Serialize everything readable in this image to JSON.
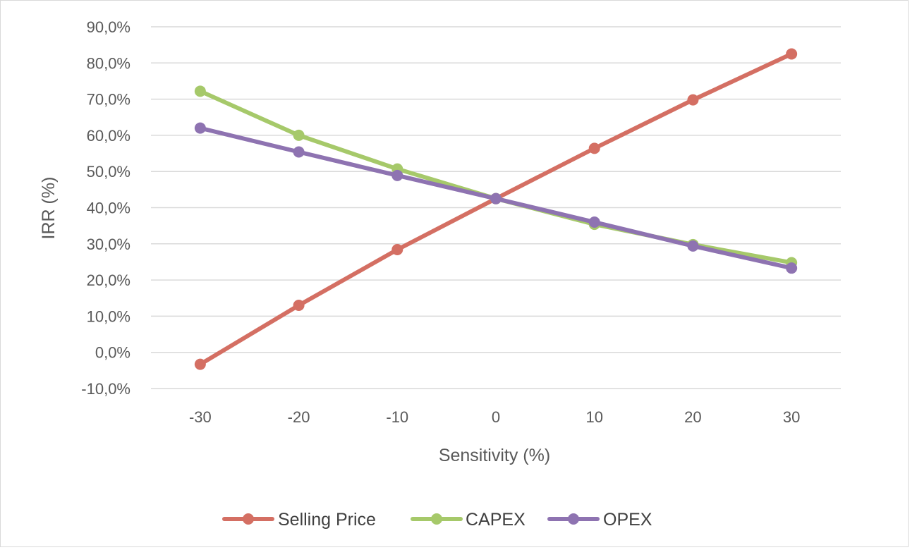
{
  "chart_data": {
    "type": "line",
    "title": "",
    "xlabel": "Sensitivity (%)",
    "ylabel": "IRR (%)",
    "x": [
      -30,
      -20,
      -10,
      0,
      10,
      20,
      30
    ],
    "x_tick_labels": [
      "-30",
      "-20",
      "-10",
      "0",
      "10",
      "20",
      "30"
    ],
    "ylim": [
      -10,
      90
    ],
    "y_ticks": [
      -10,
      0,
      10,
      20,
      30,
      40,
      50,
      60,
      70,
      80,
      90
    ],
    "y_tick_labels": [
      "-10,0%",
      "0,0%",
      "10,0%",
      "20,0%",
      "30,0%",
      "40,0%",
      "50,0%",
      "60,0%",
      "70,0%",
      "80,0%",
      "90,0%"
    ],
    "grid": "horizontal",
    "legend_position": "bottom",
    "series": [
      {
        "name": "Selling Price",
        "color": "#d46f63",
        "values": [
          -3.3,
          13.0,
          28.4,
          42.5,
          56.4,
          69.8,
          82.5
        ]
      },
      {
        "name": "CAPEX",
        "color": "#a6c96a",
        "values": [
          72.2,
          60.0,
          50.7,
          42.5,
          35.4,
          29.8,
          24.8
        ]
      },
      {
        "name": "OPEX",
        "color": "#8e73b1",
        "values": [
          62.0,
          55.4,
          48.9,
          42.5,
          36.0,
          29.4,
          23.3
        ]
      }
    ]
  }
}
